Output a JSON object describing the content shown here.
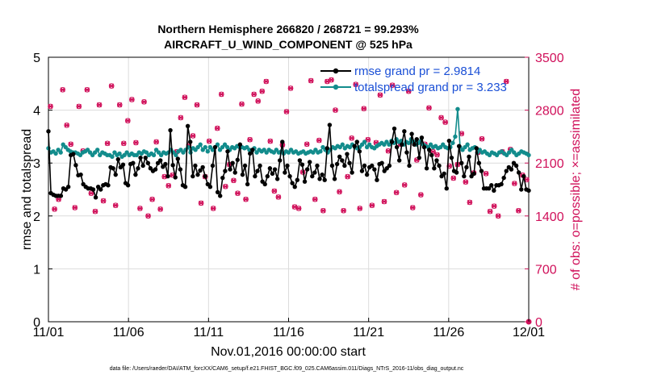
{
  "chart_data": {
    "type": "line",
    "title": "Northern Hemisphere 266820 / 268721 = 99.293%",
    "subtitle": "AIRCRAFT_U_WIND_COMPONENT @ 525 hPa",
    "xlabel": "Nov.01,2016 00:00:00 start",
    "ylabel_left": "rmse and totalspread",
    "ylabel_right": "# of obs: o=possible; ×=assimilated",
    "footer": "data file: /Users/raeder/DAI/ATM_forcXX/CAM6_setup/f.e21.FHIST_BGC.f09_025.CAM6assim.011/Diags_NTrS_2016-11/obs_diag_output.nc",
    "x_range": [
      0,
      30
    ],
    "x_ticks": [
      {
        "value": 0,
        "label": "11/01"
      },
      {
        "value": 5,
        "label": "11/06"
      },
      {
        "value": 10,
        "label": "11/11"
      },
      {
        "value": 15,
        "label": "11/16"
      },
      {
        "value": 20,
        "label": "11/21"
      },
      {
        "value": 25,
        "label": "11/26"
      },
      {
        "value": 30,
        "label": "12/01"
      }
    ],
    "ylim_left": [
      0,
      5
    ],
    "yticks_left": [
      "0",
      "1",
      "2",
      "3",
      "4",
      "5"
    ],
    "ylim_right": [
      0,
      3500
    ],
    "yticks_right": [
      "0",
      "700",
      "1400",
      "2100",
      "2800",
      "3500"
    ],
    "grid": true,
    "legend_position": "top-right",
    "colors": {
      "rmse": "#000000",
      "spread": "#128c8c",
      "obs": "#d0105a",
      "legend_text": "#1a4fd6"
    },
    "series": [
      {
        "name": "rmse grand pr = 2.9814",
        "axis": "left",
        "values": [
          3.6,
          2.43,
          2.4,
          2.38,
          2.38,
          2.38,
          2.52,
          2.5,
          2.55,
          3.15,
          3.17,
          2.96,
          2.77,
          2.78,
          2.6,
          2.55,
          2.52,
          2.52,
          2.5,
          2.35,
          2.55,
          2.5,
          2.58,
          2.6,
          2.58,
          2.92,
          2.9,
          2.78,
          3.07,
          2.92,
          2.97,
          2.62,
          2.58,
          2.98,
          3.0,
          2.78,
          2.9,
          3.1,
          2.95,
          3.1,
          3.0,
          2.9,
          2.85,
          2.88,
          3.0,
          3.05,
          2.93,
          2.98,
          2.75,
          3.62,
          2.96,
          2.73,
          3.08,
          2.88,
          2.58,
          2.55,
          3.7,
          3.4,
          2.75,
          2.95,
          2.78,
          2.86,
          2.92,
          2.75,
          2.6,
          2.55,
          2.95,
          3.3,
          2.45,
          2.38,
          2.72,
          2.85,
          3.22,
          2.88,
          3.0,
          2.82,
          3.06,
          3.35,
          2.78,
          2.95,
          2.6,
          3.18,
          3.25,
          2.75,
          2.85,
          2.95,
          2.65,
          2.6,
          2.75,
          2.9,
          2.8,
          2.88,
          2.7,
          3.05,
          3.4,
          2.82,
          2.95,
          2.75,
          2.62,
          2.55,
          2.68,
          3.05,
          2.97,
          2.65,
          2.88,
          3.02,
          2.75,
          2.82,
          2.95,
          2.7,
          2.78,
          2.68,
          3.28,
          3.72,
          2.95,
          2.7,
          2.98,
          3.12,
          3.05,
          2.95,
          3.17,
          3.0,
          2.82,
          3.32,
          3.4,
          3.22,
          2.85,
          2.95,
          2.78,
          2.92,
          2.95,
          2.88,
          2.68,
          2.98,
          3.0,
          2.85,
          2.9,
          2.95,
          3.4,
          3.65,
          3.3,
          3.05,
          3.35,
          3.6,
          3.2,
          2.95,
          3.55,
          3.35,
          3.45,
          3.1,
          3.48,
          3.3,
          2.9,
          3.25,
          3.15,
          2.9,
          3.05,
          2.95,
          2.75,
          2.8,
          2.52,
          3.42,
          3.1,
          2.85,
          2.82,
          3.32,
          3.0,
          2.75,
          2.92,
          3.12,
          2.75,
          2.8,
          3.28,
          3.0,
          2.85,
          2.52,
          2.52,
          2.52,
          2.58,
          2.48,
          2.58,
          2.58,
          2.6,
          2.72,
          2.85,
          2.92,
          2.88,
          3.0,
          2.95,
          2.82,
          2.5,
          2.75,
          2.5,
          2.48
        ]
      },
      {
        "name": "totalspread grand pr = 3.233",
        "axis": "left",
        "values": [
          3.28,
          3.2,
          3.22,
          3.18,
          3.25,
          3.2,
          3.35,
          3.3,
          3.25,
          3.22,
          3.2,
          3.2,
          3.18,
          3.15,
          3.2,
          3.22,
          3.25,
          3.2,
          3.15,
          3.2,
          3.25,
          3.15,
          3.2,
          3.18,
          3.15,
          3.15,
          3.12,
          3.2,
          3.15,
          3.18,
          3.12,
          3.15,
          3.2,
          3.15,
          3.18,
          3.15,
          3.15,
          3.2,
          3.18,
          3.22,
          3.2,
          3.15,
          3.18,
          3.15,
          3.25,
          3.2,
          3.15,
          3.2,
          3.18,
          3.2,
          3.25,
          3.2,
          3.15,
          3.22,
          3.25,
          3.2,
          3.25,
          3.3,
          3.2,
          3.28,
          3.25,
          3.3,
          3.35,
          3.25,
          3.3,
          3.22,
          3.3,
          3.25,
          3.3,
          3.35,
          3.25,
          3.3,
          3.35,
          3.3,
          3.25,
          3.3,
          3.28,
          3.32,
          3.3,
          3.3,
          3.28,
          3.3,
          3.25,
          3.22,
          3.28,
          3.2,
          3.25,
          3.22,
          3.25,
          3.2,
          3.25,
          3.22,
          3.2,
          3.25,
          3.2,
          3.22,
          3.18,
          3.22,
          3.2,
          3.25,
          3.2,
          3.22,
          3.18,
          3.2,
          3.22,
          3.18,
          3.2,
          3.22,
          3.2,
          3.25,
          3.2,
          3.22,
          3.3,
          3.25,
          3.2,
          3.25,
          3.3,
          3.28,
          3.32,
          3.3,
          3.35,
          3.28,
          3.32,
          3.3,
          3.35,
          3.3,
          3.28,
          3.3,
          3.35,
          3.4,
          3.3,
          3.35,
          3.3,
          3.28,
          3.32,
          3.35,
          3.38,
          3.35,
          3.4,
          3.35,
          3.42,
          3.38,
          3.45,
          3.4,
          3.42,
          3.35,
          3.4,
          3.38,
          3.45,
          3.4,
          3.35,
          3.38,
          3.42,
          3.35,
          3.32,
          3.3,
          3.35,
          3.3,
          3.32,
          3.28,
          3.3,
          3.35,
          3.3,
          3.28,
          3.3,
          3.38,
          3.5,
          4.02,
          3.3,
          3.25,
          3.3,
          3.35,
          3.25,
          3.28,
          3.3,
          3.2,
          3.25,
          3.2,
          3.22,
          3.18,
          3.15,
          3.2,
          3.18,
          3.15,
          3.2,
          3.22,
          3.18,
          3.15,
          3.2,
          3.25,
          3.2,
          3.15,
          3.18,
          3.22,
          3.2,
          3.18,
          3.15
        ]
      },
      {
        "name": "obs possible",
        "axis": "right",
        "marker": "o",
        "values": [
          2850,
          1490,
          1620,
          3070,
          2600,
          2350,
          1510,
          2850,
          2260,
          3070,
          1700,
          1460,
          2870,
          1600,
          2360,
          3120,
          1540,
          2870,
          2360,
          2660,
          2940,
          2370,
          1500,
          2910,
          1400,
          1620,
          2380,
          1490,
          1920,
          1800,
          1940,
          2250,
          2700,
          2970,
          2340,
          2460,
          2870,
          1570,
          1920,
          2390,
          1500,
          2560,
          3010,
          1790,
          2080,
          1870,
          1700,
          2880,
          1620,
          2410,
          3010,
          2920,
          3050,
          3180,
          2390,
          1730,
          1650,
          2340,
          2780,
          3090,
          1520,
          1500,
          1980,
          2350,
          3190,
          1620,
          2400,
          1470,
          3180,
          3200,
          2800,
          1720,
          1470,
          1920,
          2430,
          3140,
          1500,
          2820,
          2410,
          1540,
          2370,
          3000,
          1590,
          2260,
          3130,
          1710,
          2350,
          1810,
          3050,
          1510,
          2140,
          1680,
          2350,
          2830,
          2250,
          2210,
          2700,
          2640,
          2060,
          1900,
          2080,
          2490,
          1850,
          1580,
          1970,
          2240,
          2420,
          1960,
          1460,
          1530,
          1400,
          2250,
          3180,
          2280,
          1830,
          1470,
          1940,
          1880
        ]
      },
      {
        "name": "obs assimilated",
        "axis": "right",
        "marker": "x",
        "values": [
          2850,
          1490,
          1620,
          3070,
          2600,
          2350,
          1510,
          2850,
          2260,
          3070,
          1700,
          1460,
          2870,
          1600,
          2360,
          3120,
          1540,
          2870,
          2360,
          2660,
          2940,
          2370,
          1500,
          2910,
          1400,
          1620,
          2380,
          1490,
          1920,
          1800,
          1940,
          2250,
          2700,
          2970,
          2340,
          2460,
          2870,
          1570,
          1920,
          2390,
          1500,
          2560,
          3010,
          1790,
          2080,
          1870,
          1700,
          2880,
          1620,
          2410,
          3010,
          2920,
          3050,
          3180,
          2390,
          1730,
          1650,
          2340,
          2780,
          3090,
          1520,
          1500,
          1980,
          2350,
          3190,
          1620,
          2400,
          1470,
          3180,
          3200,
          2800,
          1720,
          1470,
          1920,
          2430,
          3140,
          1500,
          2820,
          2410,
          1540,
          2370,
          3000,
          1590,
          2260,
          3130,
          1710,
          2350,
          1810,
          3050,
          1510,
          2140,
          1680,
          2350,
          2830,
          2250,
          2210,
          2700,
          2640,
          2060,
          1900,
          2080,
          2490,
          1850,
          1580,
          1970,
          2240,
          2420,
          1960,
          1460,
          1530,
          1400,
          2250,
          3180,
          2280,
          1830,
          1470,
          1940,
          1880
        ]
      }
    ]
  }
}
